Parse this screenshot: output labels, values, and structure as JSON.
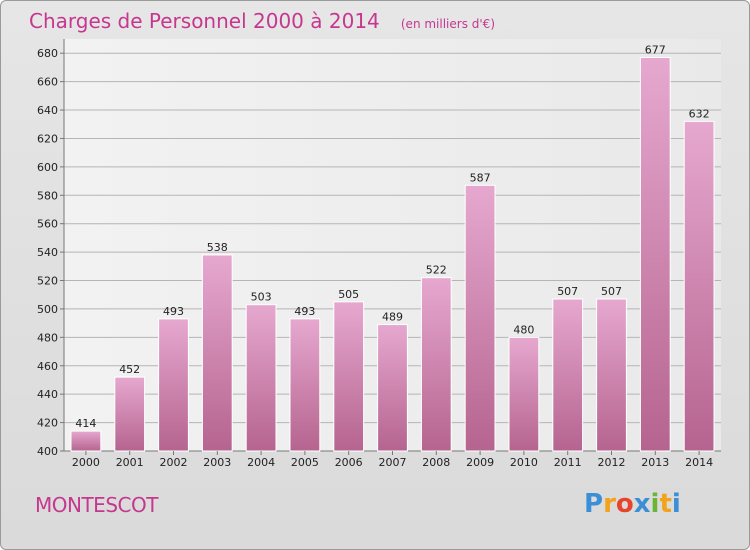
{
  "chart_data": {
    "type": "bar",
    "title": "Charges de Personnel 2000 à 2014",
    "subtitle": "(en milliers d'€)",
    "categories": [
      "2000",
      "2001",
      "2002",
      "2003",
      "2004",
      "2005",
      "2006",
      "2007",
      "2008",
      "2009",
      "2010",
      "2011",
      "2012",
      "2013",
      "2014"
    ],
    "values": [
      414,
      452,
      493,
      538,
      503,
      493,
      505,
      489,
      522,
      587,
      480,
      507,
      507,
      677,
      632
    ],
    "ylim": [
      400,
      690
    ],
    "yticks": [
      400,
      420,
      440,
      460,
      480,
      500,
      520,
      540,
      560,
      580,
      600,
      620,
      640,
      660,
      680
    ],
    "grid": true,
    "bar_color": "#d990bc"
  },
  "place_name": "MONTESCOT",
  "logo": {
    "letters": [
      "P",
      "r",
      "o",
      "x",
      "i",
      "t",
      "i"
    ],
    "colors": [
      "#3a8fd6",
      "#f2a21b",
      "#e8432b",
      "#3a8fd6",
      "#6bb536",
      "#f2a21b",
      "#3a8fd6"
    ]
  }
}
